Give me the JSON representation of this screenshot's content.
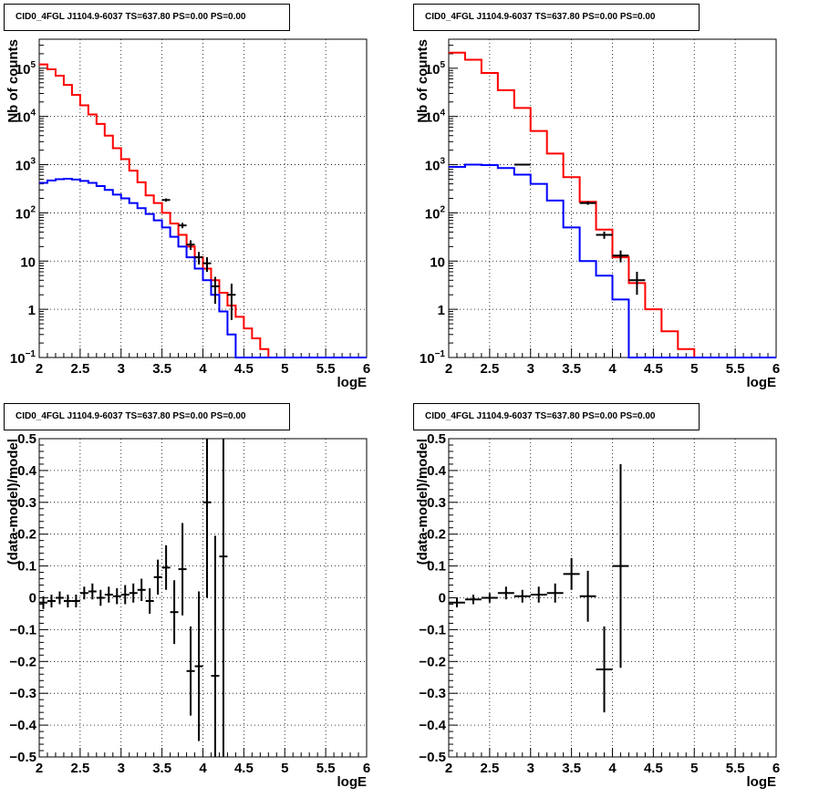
{
  "chart_data": [
    {
      "type": "line",
      "title": "CID0_4FGL J1104.9-6037 TS=637.80 PS=0.00 PS=0.00",
      "xlabel": "logE",
      "ylabel": "Nb of counts",
      "xlim": [
        2,
        6
      ],
      "ylim": [
        0.1,
        400000
      ],
      "yscale": "log",
      "grid": true,
      "xticks": [
        "2",
        "2.5",
        "3",
        "3.5",
        "4",
        "4.5",
        "5",
        "5.5",
        "6"
      ],
      "yticks": [
        "10",
        "1",
        "10"
      ],
      "ytick_labels": [
        {
          "value": 0.1,
          "base": "10",
          "exp": "−1"
        },
        {
          "value": 1,
          "base": "1",
          "exp": ""
        },
        {
          "value": 10,
          "base": "10",
          "exp": ""
        },
        {
          "value": 100,
          "base": "10",
          "exp": "2"
        },
        {
          "value": 1000,
          "base": "10",
          "exp": "3"
        },
        {
          "value": 10000,
          "base": "10",
          "exp": "4"
        },
        {
          "value": 100000,
          "base": "10",
          "exp": "5"
        }
      ],
      "bin_edges": [
        2.0,
        2.1,
        2.2,
        2.3,
        2.4,
        2.5,
        2.6,
        2.7,
        2.8,
        2.9,
        3.0,
        3.1,
        3.2,
        3.3,
        3.4,
        3.5,
        3.6,
        3.7,
        3.8,
        3.9,
        4.0,
        4.1,
        4.2,
        4.3,
        4.4,
        4.5,
        4.6,
        4.7,
        4.8,
        4.9,
        5.0,
        5.1,
        5.2,
        5.3,
        5.4,
        5.5,
        5.6,
        5.7,
        5.8,
        5.9,
        6.0
      ],
      "series": [
        {
          "color": "#ff0000",
          "kind": "histogram",
          "values": [
            120000,
            95000,
            70000,
            45000,
            28000,
            17000,
            11000,
            7000,
            4000,
            2200,
            1300,
            750,
            430,
            230,
            160,
            100,
            60,
            35,
            20,
            12,
            7,
            4,
            2.2,
            1.2,
            0.7,
            0.4,
            0.25,
            0.15,
            0.1,
            0.1,
            0.1,
            0.1,
            0.1,
            0.1,
            0.1,
            0.1,
            0.1,
            0.1,
            0.1,
            0.1
          ]
        },
        {
          "color": "#0000ff",
          "kind": "histogram",
          "values": [
            420,
            470,
            500,
            510,
            490,
            460,
            420,
            360,
            300,
            240,
            200,
            160,
            125,
            95,
            70,
            50,
            32,
            20,
            12,
            7,
            4,
            2,
            0.9,
            0.3,
            0.1,
            0.1,
            0.1,
            0.1,
            0.1,
            0.1,
            0.1,
            0.1,
            0.1,
            0.1,
            0.1,
            0.1,
            0.1,
            0.1,
            0.1,
            0.1
          ]
        },
        {
          "color": "#000000",
          "kind": "points",
          "points": [
            {
              "x": 3.55,
              "y": 185,
              "xerr": 0.05,
              "yerr": 14
            },
            {
              "x": 3.75,
              "y": 55,
              "xerr": 0.05,
              "yerr": 7
            },
            {
              "x": 3.85,
              "y": 22,
              "xerr": 0.05,
              "yerr": 5
            },
            {
              "x": 3.95,
              "y": 12,
              "xerr": 0.05,
              "yerr": 3.5
            },
            {
              "x": 4.05,
              "y": 9,
              "xerr": 0.05,
              "yerr": 3
            },
            {
              "x": 4.15,
              "y": 3,
              "xerr": 0.05,
              "yerr": 1.7
            },
            {
              "x": 4.35,
              "y": 2,
              "xerr": 0.05,
              "yerr": 1.4
            }
          ]
        }
      ]
    },
    {
      "type": "line",
      "title": "CID0_4FGL J1104.9-6037 TS=637.80 PS=0.00 PS=0.00",
      "xlabel": "logE",
      "ylabel": "Nb of counts",
      "xlim": [
        2,
        6
      ],
      "ylim": [
        0.1,
        400000
      ],
      "yscale": "log",
      "grid": true,
      "xticks": [
        "2",
        "2.5",
        "3",
        "3.5",
        "4",
        "4.5",
        "5",
        "5.5",
        "6"
      ],
      "ytick_labels": [
        {
          "value": 0.1,
          "base": "10",
          "exp": "−1"
        },
        {
          "value": 1,
          "base": "1",
          "exp": ""
        },
        {
          "value": 10,
          "base": "10",
          "exp": ""
        },
        {
          "value": 100,
          "base": "10",
          "exp": "2"
        },
        {
          "value": 1000,
          "base": "10",
          "exp": "3"
        },
        {
          "value": 10000,
          "base": "10",
          "exp": "4"
        },
        {
          "value": 100000,
          "base": "10",
          "exp": "5"
        }
      ],
      "bin_edges": [
        2.0,
        2.2,
        2.4,
        2.6,
        2.8,
        3.0,
        3.2,
        3.4,
        3.6,
        3.8,
        4.0,
        4.2,
        4.4,
        4.6,
        4.8,
        5.0,
        5.2,
        5.4,
        5.6,
        5.8,
        6.0
      ],
      "series": [
        {
          "color": "#ff0000",
          "kind": "histogram",
          "values": [
            210000,
            150000,
            80000,
            35000,
            15000,
            5000,
            1700,
            550,
            170,
            45,
            12,
            3.5,
            1,
            0.35,
            0.15,
            0.1,
            0.1,
            0.1,
            0.1,
            0.1
          ]
        },
        {
          "color": "#0000ff",
          "kind": "histogram",
          "values": [
            900,
            1000,
            980,
            850,
            620,
            400,
            180,
            50,
            10,
            5,
            1.6,
            0.1,
            0.1,
            0.1,
            0.1,
            0.1,
            0.1,
            0.1,
            0.1,
            0.1
          ]
        },
        {
          "color": "#000000",
          "kind": "points",
          "points": [
            {
              "x": 2.9,
              "y": 1000,
              "xerr": 0.1,
              "yerr": 30
            },
            {
              "x": 3.7,
              "y": 160,
              "xerr": 0.1,
              "yerr": 13
            },
            {
              "x": 3.9,
              "y": 35,
              "xerr": 0.1,
              "yerr": 6
            },
            {
              "x": 4.1,
              "y": 13,
              "xerr": 0.1,
              "yerr": 3.6
            },
            {
              "x": 4.3,
              "y": 4,
              "xerr": 0.1,
              "yerr": 2
            }
          ]
        }
      ]
    },
    {
      "type": "scatter",
      "title": "CID0_4FGL J1104.9-6037 TS=637.80 PS=0.00 PS=0.00",
      "xlabel": "logE",
      "ylabel": "(data-model)/model",
      "xlim": [
        2,
        6
      ],
      "ylim": [
        -0.5,
        0.5
      ],
      "grid": true,
      "xticks": [
        "2",
        "2.5",
        "3",
        "3.5",
        "4",
        "4.5",
        "5",
        "5.5",
        "6"
      ],
      "yticks": [
        "−0.5",
        "−0.4",
        "−0.3",
        "−0.2",
        "−0.1",
        "0",
        "0.1",
        "0.2",
        "0.3",
        "0.4",
        "0.5"
      ],
      "points": [
        {
          "x": 2.05,
          "y": -0.015,
          "xerr": 0.05,
          "yerr": 0.02
        },
        {
          "x": 2.15,
          "y": -0.01,
          "xerr": 0.05,
          "yerr": 0.02
        },
        {
          "x": 2.25,
          "y": 0.0,
          "xerr": 0.05,
          "yerr": 0.02
        },
        {
          "x": 2.35,
          "y": -0.01,
          "xerr": 0.05,
          "yerr": 0.02
        },
        {
          "x": 2.45,
          "y": -0.01,
          "xerr": 0.05,
          "yerr": 0.02
        },
        {
          "x": 2.55,
          "y": 0.015,
          "xerr": 0.05,
          "yerr": 0.02
        },
        {
          "x": 2.65,
          "y": 0.02,
          "xerr": 0.05,
          "yerr": 0.025
        },
        {
          "x": 2.75,
          "y": 0.0,
          "xerr": 0.05,
          "yerr": 0.025
        },
        {
          "x": 2.85,
          "y": 0.01,
          "xerr": 0.05,
          "yerr": 0.025
        },
        {
          "x": 2.95,
          "y": 0.005,
          "xerr": 0.05,
          "yerr": 0.025
        },
        {
          "x": 3.05,
          "y": 0.01,
          "xerr": 0.05,
          "yerr": 0.03
        },
        {
          "x": 3.15,
          "y": 0.015,
          "xerr": 0.05,
          "yerr": 0.03
        },
        {
          "x": 3.25,
          "y": 0.025,
          "xerr": 0.05,
          "yerr": 0.035
        },
        {
          "x": 3.35,
          "y": -0.01,
          "xerr": 0.05,
          "yerr": 0.04
        },
        {
          "x": 3.45,
          "y": 0.065,
          "xerr": 0.05,
          "yerr": 0.055
        },
        {
          "x": 3.55,
          "y": 0.095,
          "xerr": 0.05,
          "yerr": 0.07
        },
        {
          "x": 3.65,
          "y": -0.045,
          "xerr": 0.05,
          "yerr": 0.1
        },
        {
          "x": 3.75,
          "y": 0.09,
          "xerr": 0.05,
          "yerr": 0.145
        },
        {
          "x": 3.85,
          "y": -0.23,
          "xerr": 0.05,
          "yerr": 0.14
        },
        {
          "x": 3.95,
          "y": -0.215,
          "xerr": 0.05,
          "yerr": 0.235
        },
        {
          "x": 4.05,
          "y": 0.3,
          "xerr": 0.05,
          "yerr": 0.3
        },
        {
          "x": 4.15,
          "y": -0.245,
          "xerr": 0.05,
          "yerr": 0.44
        },
        {
          "x": 4.25,
          "y": 0.13,
          "xerr": 0.05,
          "yerr": 0.7
        }
      ]
    },
    {
      "type": "scatter",
      "title": "CID0_4FGL J1104.9-6037 TS=637.80 PS=0.00 PS=0.00",
      "xlabel": "logE",
      "ylabel": "(data-model)/model",
      "xlim": [
        2,
        6
      ],
      "ylim": [
        -0.5,
        0.5
      ],
      "grid": true,
      "xticks": [
        "2",
        "2.5",
        "3",
        "3.5",
        "4",
        "4.5",
        "5",
        "5.5",
        "6"
      ],
      "yticks": [
        "−0.5",
        "−0.4",
        "−0.3",
        "−0.2",
        "−0.1",
        "0",
        "0.1",
        "0.2",
        "0.3",
        "0.4",
        "0.5"
      ],
      "points": [
        {
          "x": 2.1,
          "y": -0.015,
          "xerr": 0.1,
          "yerr": 0.015
        },
        {
          "x": 2.3,
          "y": -0.005,
          "xerr": 0.1,
          "yerr": 0.015
        },
        {
          "x": 2.5,
          "y": 0.0,
          "xerr": 0.1,
          "yerr": 0.015
        },
        {
          "x": 2.7,
          "y": 0.015,
          "xerr": 0.1,
          "yerr": 0.02
        },
        {
          "x": 2.9,
          "y": 0.005,
          "xerr": 0.1,
          "yerr": 0.02
        },
        {
          "x": 3.1,
          "y": 0.01,
          "xerr": 0.1,
          "yerr": 0.025
        },
        {
          "x": 3.3,
          "y": 0.015,
          "xerr": 0.1,
          "yerr": 0.03
        },
        {
          "x": 3.5,
          "y": 0.075,
          "xerr": 0.1,
          "yerr": 0.05
        },
        {
          "x": 3.7,
          "y": 0.005,
          "xerr": 0.1,
          "yerr": 0.08
        },
        {
          "x": 3.9,
          "y": -0.225,
          "xerr": 0.1,
          "yerr": 0.135
        },
        {
          "x": 4.1,
          "y": 0.1,
          "xerr": 0.1,
          "yerr": 0.32
        }
      ]
    }
  ]
}
